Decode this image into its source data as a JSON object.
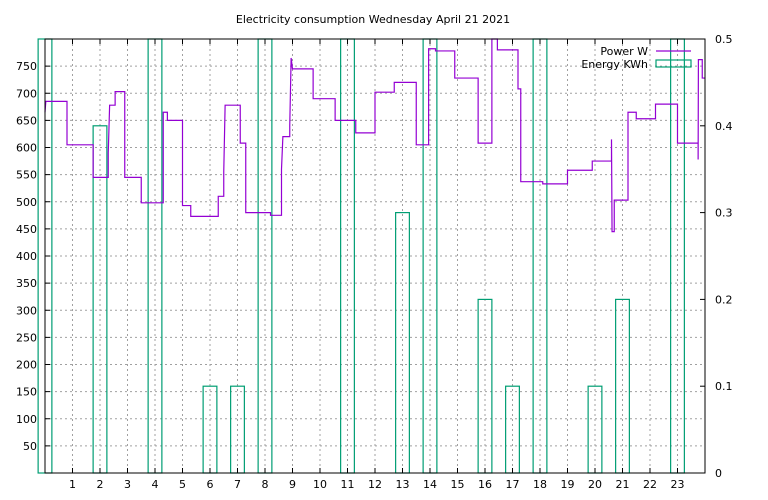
{
  "chart_data": {
    "type": "line",
    "title": "Electricity consumption Wednesday April 21 2021",
    "xlabel": "",
    "ylabel": "",
    "y2label": "",
    "xlim": [
      0,
      24
    ],
    "ylim": [
      0,
      800
    ],
    "y2lim": [
      0,
      0.5
    ],
    "grid": true,
    "legend_position": "top-right",
    "x_ticks": [
      1,
      2,
      3,
      4,
      5,
      6,
      7,
      8,
      9,
      10,
      11,
      12,
      13,
      14,
      15,
      16,
      17,
      18,
      19,
      20,
      21,
      22,
      23
    ],
    "y_ticks": [
      50,
      100,
      150,
      200,
      250,
      300,
      350,
      400,
      450,
      500,
      550,
      600,
      650,
      700,
      750
    ],
    "y2_ticks": [
      0,
      0.1,
      0.2,
      0.3,
      0.4,
      0.5
    ],
    "series": [
      {
        "name": "Power W",
        "axis": "left",
        "color": "#9400d3",
        "points": [
          [
            0.0,
            665
          ],
          [
            0.03,
            685
          ],
          [
            0.8,
            685
          ],
          [
            0.8,
            605
          ],
          [
            1.75,
            605
          ],
          [
            1.75,
            545
          ],
          [
            2.3,
            545
          ],
          [
            2.3,
            590
          ],
          [
            2.35,
            678
          ],
          [
            2.55,
            678
          ],
          [
            2.55,
            703
          ],
          [
            2.9,
            703
          ],
          [
            2.9,
            545
          ],
          [
            3.5,
            545
          ],
          [
            3.5,
            498
          ],
          [
            4.3,
            498
          ],
          [
            4.3,
            665
          ],
          [
            4.45,
            665
          ],
          [
            4.45,
            650
          ],
          [
            5.0,
            650
          ],
          [
            5.0,
            493
          ],
          [
            5.3,
            493
          ],
          [
            5.3,
            473
          ],
          [
            6.3,
            473
          ],
          [
            6.3,
            510
          ],
          [
            6.5,
            510
          ],
          [
            6.5,
            555
          ],
          [
            6.55,
            678
          ],
          [
            7.1,
            678
          ],
          [
            7.1,
            608
          ],
          [
            7.3,
            608
          ],
          [
            7.3,
            480
          ],
          [
            8.2,
            480
          ],
          [
            8.2,
            475
          ],
          [
            8.6,
            475
          ],
          [
            8.6,
            560
          ],
          [
            8.65,
            620
          ],
          [
            8.9,
            620
          ],
          [
            8.9,
            640
          ],
          [
            8.95,
            765
          ],
          [
            9.0,
            745
          ],
          [
            9.75,
            745
          ],
          [
            9.75,
            690
          ],
          [
            10.55,
            690
          ],
          [
            10.55,
            650
          ],
          [
            11.3,
            650
          ],
          [
            11.3,
            627
          ],
          [
            12.0,
            627
          ],
          [
            12.0,
            702
          ],
          [
            12.7,
            702
          ],
          [
            12.7,
            720
          ],
          [
            13.5,
            720
          ],
          [
            13.5,
            605
          ],
          [
            13.95,
            605
          ],
          [
            13.95,
            782
          ],
          [
            14.2,
            782
          ],
          [
            14.2,
            778
          ],
          [
            14.9,
            778
          ],
          [
            14.9,
            728
          ],
          [
            15.75,
            728
          ],
          [
            15.75,
            608
          ],
          [
            16.25,
            608
          ],
          [
            16.25,
            800
          ],
          [
            16.45,
            800
          ],
          [
            16.45,
            780
          ],
          [
            17.2,
            780
          ],
          [
            17.2,
            708
          ],
          [
            17.3,
            708
          ],
          [
            17.3,
            537
          ],
          [
            18.1,
            537
          ],
          [
            18.1,
            533
          ],
          [
            19.0,
            533
          ],
          [
            19.0,
            558
          ],
          [
            19.9,
            558
          ],
          [
            19.9,
            575
          ],
          [
            20.6,
            575
          ],
          [
            20.6,
            615
          ],
          [
            20.62,
            445
          ],
          [
            20.7,
            445
          ],
          [
            20.7,
            503
          ],
          [
            21.2,
            503
          ],
          [
            21.2,
            665
          ],
          [
            21.5,
            665
          ],
          [
            21.5,
            653
          ],
          [
            22.2,
            653
          ],
          [
            22.2,
            680
          ],
          [
            23.0,
            680
          ],
          [
            23.0,
            608
          ],
          [
            23.75,
            608
          ],
          [
            23.75,
            578
          ],
          [
            23.76,
            762
          ],
          [
            23.9,
            762
          ],
          [
            23.9,
            728
          ],
          [
            24.0,
            728
          ]
        ]
      },
      {
        "name": "Energy KWh",
        "axis": "right",
        "color": "#009e73",
        "bar_width": 0.5,
        "bars": [
          [
            0,
            0.5
          ],
          [
            1,
            0.0
          ],
          [
            2,
            0.4
          ],
          [
            3,
            0.0
          ],
          [
            4,
            0.5
          ],
          [
            5,
            0.0
          ],
          [
            6,
            0.1
          ],
          [
            7,
            0.1
          ],
          [
            8,
            0.5
          ],
          [
            9,
            0.0
          ],
          [
            10,
            0.0
          ],
          [
            11,
            0.5
          ],
          [
            12,
            0.0
          ],
          [
            13,
            0.3
          ],
          [
            14,
            0.5
          ],
          [
            15,
            0.0
          ],
          [
            16,
            0.2
          ],
          [
            17,
            0.1
          ],
          [
            18,
            0.5
          ],
          [
            19,
            0.0
          ],
          [
            20,
            0.1
          ],
          [
            21,
            0.2
          ],
          [
            22,
            0.0
          ],
          [
            23,
            0.5
          ]
        ]
      }
    ]
  }
}
